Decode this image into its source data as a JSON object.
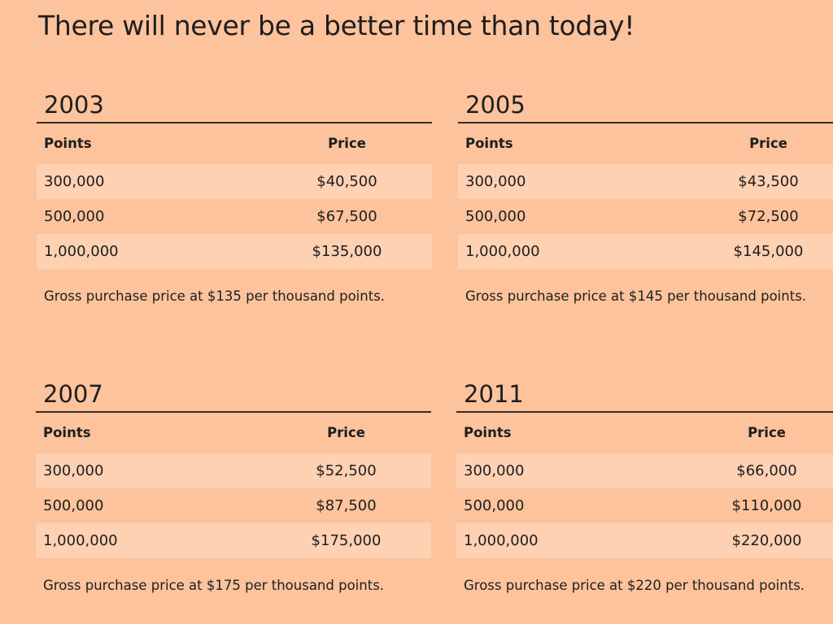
{
  "headline": "There will never be a better time than today!",
  "table_headers": {
    "points": "Points",
    "price": "Price"
  },
  "blocks": [
    {
      "year": "2003",
      "rows": [
        {
          "points": "300,000",
          "price": "$40,500"
        },
        {
          "points": "500,000",
          "price": "$67,500"
        },
        {
          "points": "1,000,000",
          "price": "$135,000"
        }
      ],
      "note": "Gross purchase price at $135 per thousand points."
    },
    {
      "year": "2005",
      "rows": [
        {
          "points": "300,000",
          "price": "$43,500"
        },
        {
          "points": "500,000",
          "price": "$72,500"
        },
        {
          "points": "1,000,000",
          "price": "$145,000"
        }
      ],
      "note": "Gross purchase price at $145 per thousand points."
    },
    {
      "year": "2007",
      "rows": [
        {
          "points": "300,000",
          "price": "$52,500"
        },
        {
          "points": "500,000",
          "price": "$87,500"
        },
        {
          "points": "1,000,000",
          "price": "$175,000"
        }
      ],
      "note": "Gross purchase price at $175 per thousand points."
    },
    {
      "year": "2011",
      "rows": [
        {
          "points": "300,000",
          "price": "$66,000"
        },
        {
          "points": "500,000",
          "price": "$110,000"
        },
        {
          "points": "1,000,000",
          "price": "$220,000"
        }
      ],
      "note": "Gross purchase price at $220 per thousand points."
    }
  ],
  "colors": {
    "background": "#fdc39c",
    "row_shade": "#fed1b3",
    "rule": "#3a2d24",
    "text": "#1e1e1e"
  }
}
